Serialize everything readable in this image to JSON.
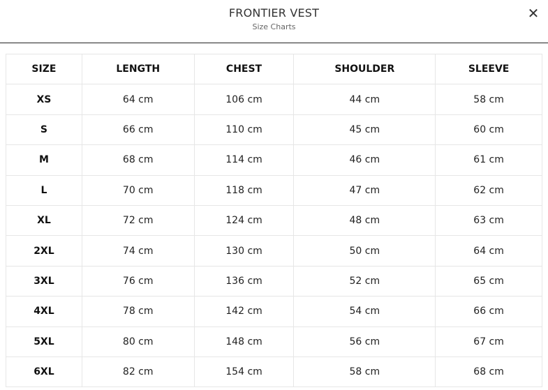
{
  "header": {
    "title": "FRONTIER VEST",
    "subtitle": "Size Charts",
    "close_icon": "close-icon",
    "close_label": "✕"
  },
  "table": {
    "columns": [
      "SIZE",
      "LENGTH",
      "CHEST",
      "SHOULDER",
      "SLEEVE"
    ],
    "rows": [
      [
        "XS",
        "64 cm",
        "106 cm",
        "44 cm",
        "58 cm"
      ],
      [
        "S",
        "66 cm",
        "110 cm",
        "45 cm",
        "60 cm"
      ],
      [
        "M",
        "68 cm",
        "114 cm",
        "46 cm",
        "61 cm"
      ],
      [
        "L",
        "70 cm",
        "118 cm",
        "47 cm",
        "62 cm"
      ],
      [
        "XL",
        "72 cm",
        "124 cm",
        "48 cm",
        "63 cm"
      ],
      [
        "2XL",
        "74 cm",
        "130 cm",
        "50 cm",
        "64 cm"
      ],
      [
        "3XL",
        "76 cm",
        "136 cm",
        "52 cm",
        "65 cm"
      ],
      [
        "4XL",
        "78 cm",
        "142 cm",
        "54 cm",
        "66 cm"
      ],
      [
        "5XL",
        "80 cm",
        "148 cm",
        "56 cm",
        "67 cm"
      ],
      [
        "6XL",
        "82 cm",
        "154 cm",
        "58 cm",
        "68 cm"
      ]
    ]
  }
}
